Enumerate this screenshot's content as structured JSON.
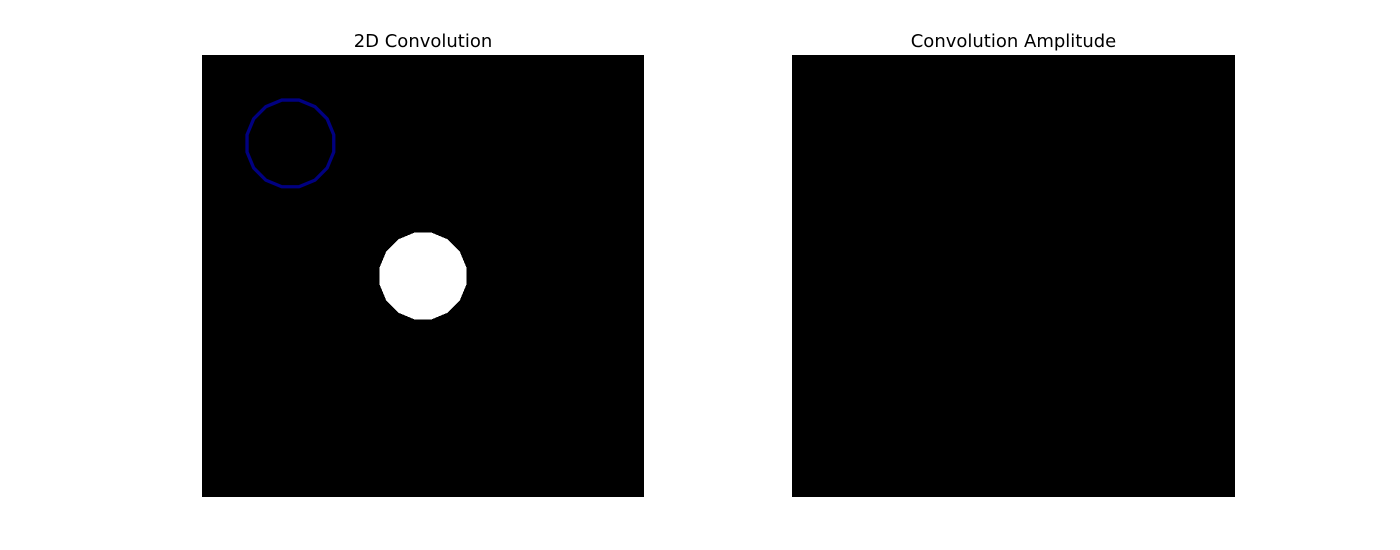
{
  "chart_data": [
    {
      "type": "heatmap",
      "title": "2D Convolution",
      "xlabel": "",
      "ylabel": "",
      "grid": false,
      "axes_visible": false,
      "background_color": "#000000",
      "grid_size": [
        100,
        100
      ],
      "shapes": [
        {
          "name": "kernel-outline",
          "kind": "circle-outline",
          "center": [
            20,
            20
          ],
          "radius": 10,
          "color": "#000080"
        },
        {
          "name": "signal-disk",
          "kind": "filled-circle",
          "center": [
            50,
            50
          ],
          "radius": 10,
          "color": "#ffffff"
        }
      ]
    },
    {
      "type": "heatmap",
      "title": "Convolution Amplitude",
      "xlabel": "",
      "ylabel": "",
      "grid": false,
      "axes_visible": false,
      "background_color": "#000000",
      "grid_size": [
        100,
        100
      ],
      "shapes": []
    }
  ]
}
